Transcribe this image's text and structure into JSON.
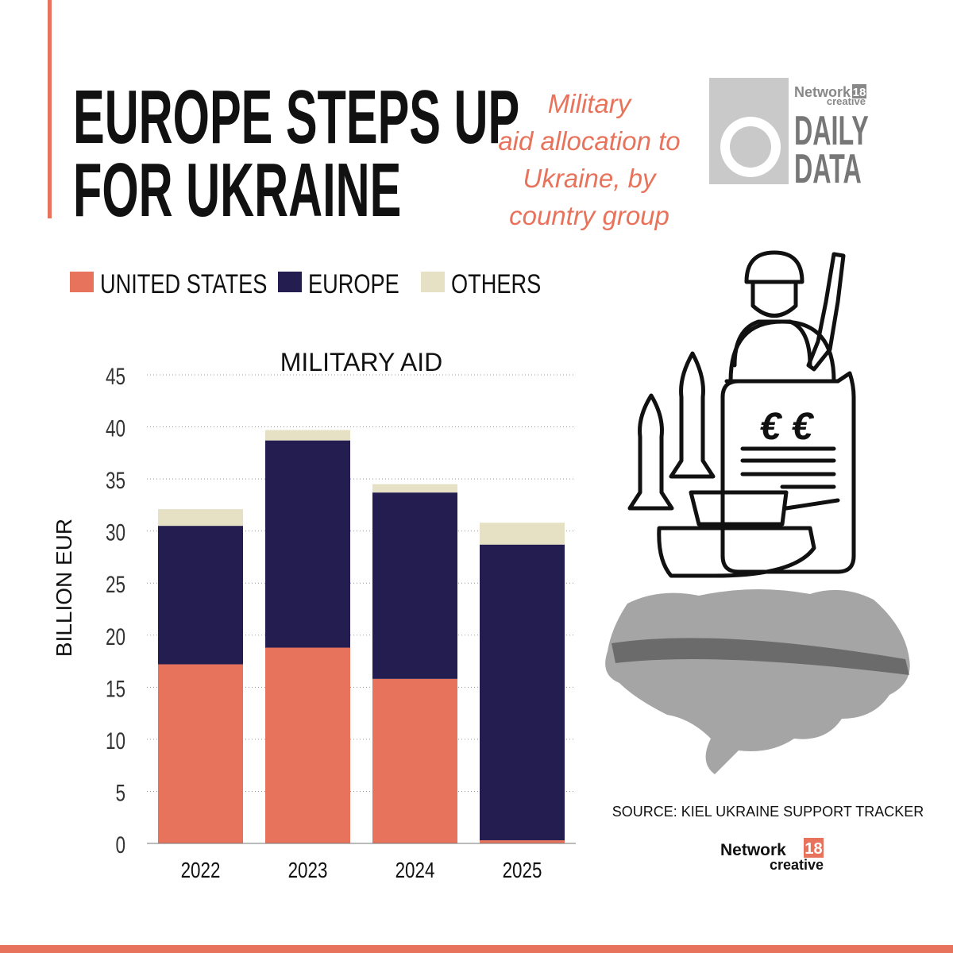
{
  "header": {
    "title_lines": [
      "EUROPE STEPS UP",
      "FOR UKRAINE"
    ],
    "subtitle_lines": [
      "Military",
      "aid allocation to",
      "Ukraine, by",
      "country group"
    ],
    "logo": {
      "brand": "Network",
      "number": "18",
      "sub": "creative",
      "line1": "DAILY",
      "line2": "DATA"
    }
  },
  "chart_data": {
    "type": "stacked_bar",
    "title": "MILITARY AID",
    "y_label": "BILLION EUR",
    "categories": [
      "2022",
      "2023",
      "2024",
      "2025"
    ],
    "series": [
      {
        "name": "UNITED STATES",
        "color": "#e8735c",
        "values": [
          17.2,
          18.8,
          15.8,
          0.3
        ]
      },
      {
        "name": "EUROPE",
        "color": "#231d50",
        "values": [
          13.3,
          19.9,
          17.9,
          28.4
        ]
      },
      {
        "name": "OTHERS",
        "color": "#e6e0c4",
        "values": [
          1.6,
          1.0,
          0.8,
          2.1
        ]
      }
    ],
    "ylim": [
      0,
      45
    ],
    "yticks": [
      0,
      5,
      10,
      15,
      20,
      25,
      30,
      35,
      40,
      45
    ],
    "grid": true
  },
  "illustration": {
    "symbols": "€ €"
  },
  "footer": {
    "source": "SOURCE: KIEL UKRAINE SUPPORT TRACKER",
    "brand": "Network",
    "number": "18",
    "sub": "creative"
  }
}
